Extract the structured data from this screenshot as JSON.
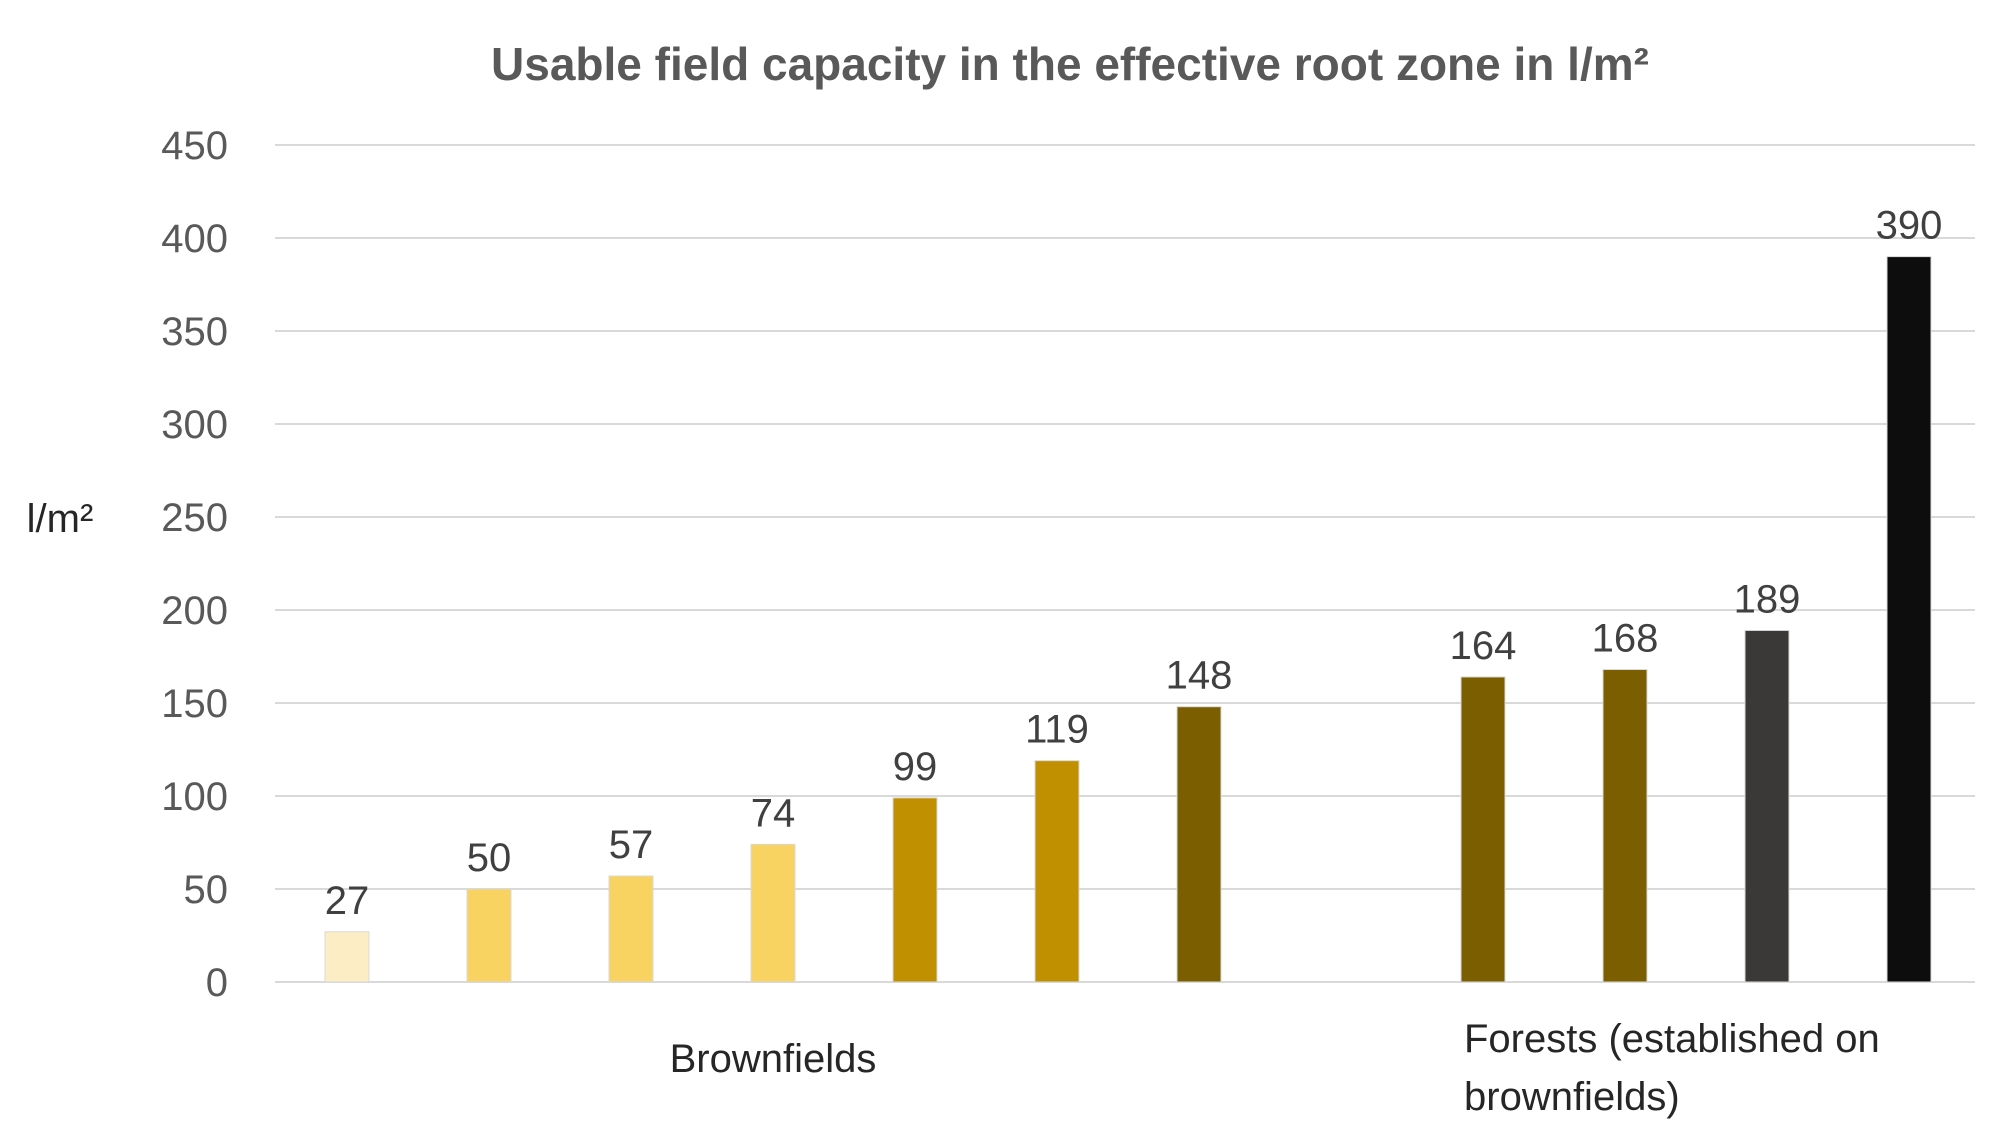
{
  "chart_data": {
    "type": "bar",
    "title": "Usable field capacity in the effective root zone in l/m²",
    "ylabel": "l/m²",
    "xlabel": "",
    "ylim": [
      0,
      450
    ],
    "yticks": [
      0,
      50,
      100,
      150,
      200,
      250,
      300,
      350,
      400,
      450
    ],
    "grid": true,
    "legend": "none",
    "values": [
      27,
      50,
      57,
      74,
      99,
      119,
      148,
      null,
      164,
      168,
      189,
      390
    ],
    "colors": [
      "#fcedc5",
      "#f8d362",
      "#f8d362",
      "#f8d362",
      "#c09000",
      "#c09000",
      "#7a5e00",
      null,
      "#7a5e00",
      "#7a5e00",
      "#3b3838",
      "#0d0d0d"
    ],
    "groups": [
      {
        "label_lines": [
          "Brownfields"
        ],
        "slots": [
          0,
          6
        ]
      },
      {
        "label_lines": [
          "Forests (established on",
          "brownfields)"
        ],
        "slots": [
          8,
          11
        ]
      }
    ]
  }
}
